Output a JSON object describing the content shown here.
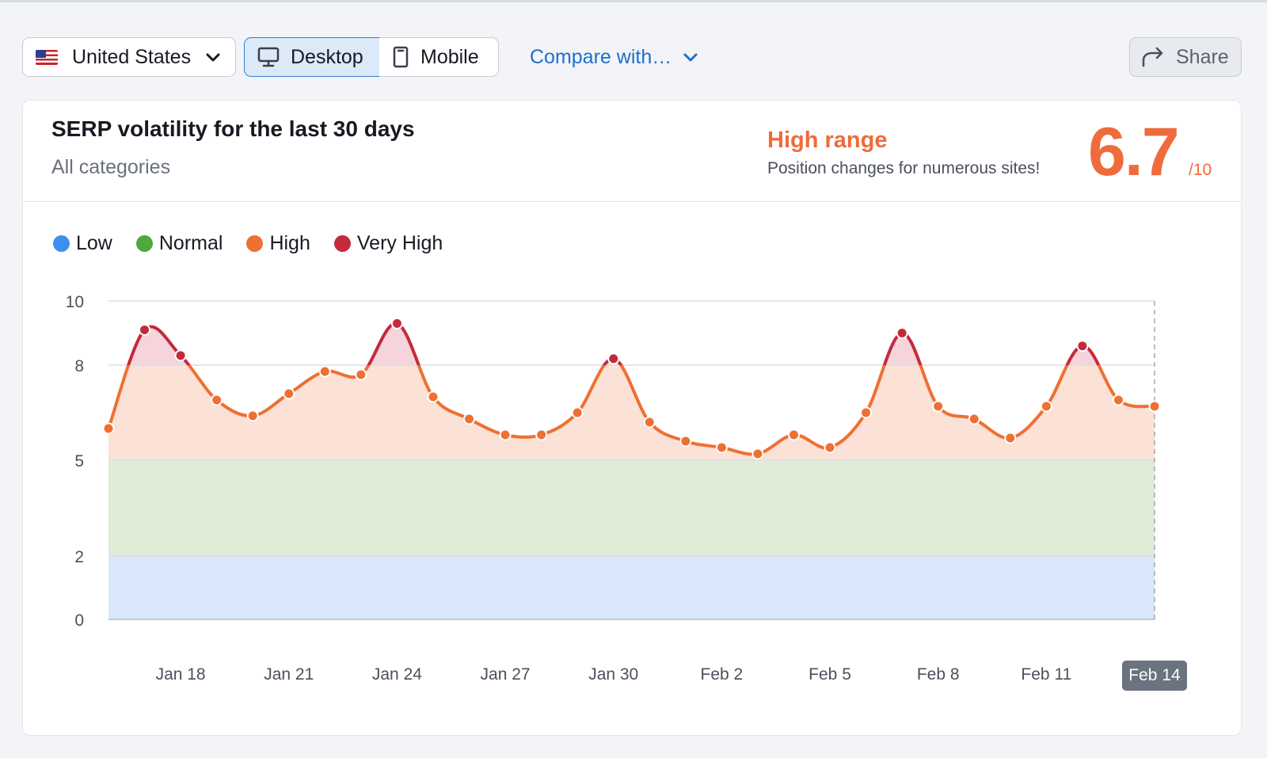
{
  "toolbar": {
    "country": "United States",
    "device_desktop": "Desktop",
    "device_mobile": "Mobile",
    "compare": "Compare with…",
    "share": "Share"
  },
  "header": {
    "title": "SERP volatility for the last 30 days",
    "subtitle": "All categories",
    "range_label": "High range",
    "range_desc": "Position changes for numerous sites!",
    "score": "6.7",
    "score_max": "/10"
  },
  "colors": {
    "low": "#3d8ef0",
    "normal": "#4ea83a",
    "high": "#ee7032",
    "very_high": "#c42a3c",
    "accent": "#ee6c3c",
    "link": "#1e6fc9"
  },
  "chart_data": {
    "type": "line",
    "title": "SERP volatility for the last 30 days",
    "ylim": [
      0,
      10
    ],
    "yticks": [
      "0",
      "2",
      "5",
      "8",
      "10"
    ],
    "ytick_values": [
      0,
      2,
      5,
      8,
      10
    ],
    "xtick_labels": [
      "Jan 18",
      "Jan 21",
      "Jan 24",
      "Jan 27",
      "Jan 30",
      "Feb 2",
      "Feb 5",
      "Feb 8",
      "Feb 11",
      "Feb 14"
    ],
    "xtick_day_index": [
      2,
      5,
      8,
      11,
      14,
      17,
      20,
      23,
      26,
      29
    ],
    "highlighted_label": "Feb 14",
    "legend": [
      {
        "name": "Low",
        "color": "#3d8ef0"
      },
      {
        "name": "Normal",
        "color": "#4ea83a"
      },
      {
        "name": "High",
        "color": "#ee7032"
      },
      {
        "name": "Very High",
        "color": "#c42a3c"
      }
    ],
    "bands": [
      {
        "name": "Low",
        "from": 0,
        "to": 2,
        "color": "#dae6fb"
      },
      {
        "name": "Normal",
        "from": 2,
        "to": 5,
        "color": "#deecd8"
      },
      {
        "name": "High",
        "from": 5,
        "to": 8,
        "color": "#fbe1d6"
      },
      {
        "name": "Very High",
        "from": 8,
        "to": 10,
        "color": "#f5d4dc"
      }
    ],
    "series": [
      {
        "name": "Volatility",
        "x_days": [
          "Jan 16",
          "Jan 17",
          "Jan 18",
          "Jan 19",
          "Jan 20",
          "Jan 21",
          "Jan 22",
          "Jan 23",
          "Jan 24",
          "Jan 25",
          "Jan 26",
          "Jan 27",
          "Jan 28",
          "Jan 29",
          "Jan 30",
          "Jan 31",
          "Feb 1",
          "Feb 2",
          "Feb 3",
          "Feb 4",
          "Feb 5",
          "Feb 6",
          "Feb 7",
          "Feb 8",
          "Feb 9",
          "Feb 10",
          "Feb 11",
          "Feb 12",
          "Feb 13",
          "Feb 14"
        ],
        "values": [
          6.0,
          9.1,
          8.3,
          6.9,
          6.4,
          7.1,
          7.8,
          7.7,
          9.3,
          7.0,
          6.3,
          5.8,
          5.8,
          6.5,
          8.2,
          6.2,
          5.6,
          5.4,
          5.2,
          5.8,
          5.4,
          6.5,
          9.0,
          6.7,
          6.3,
          5.7,
          6.7,
          8.6,
          6.9,
          6.7
        ]
      }
    ]
  }
}
